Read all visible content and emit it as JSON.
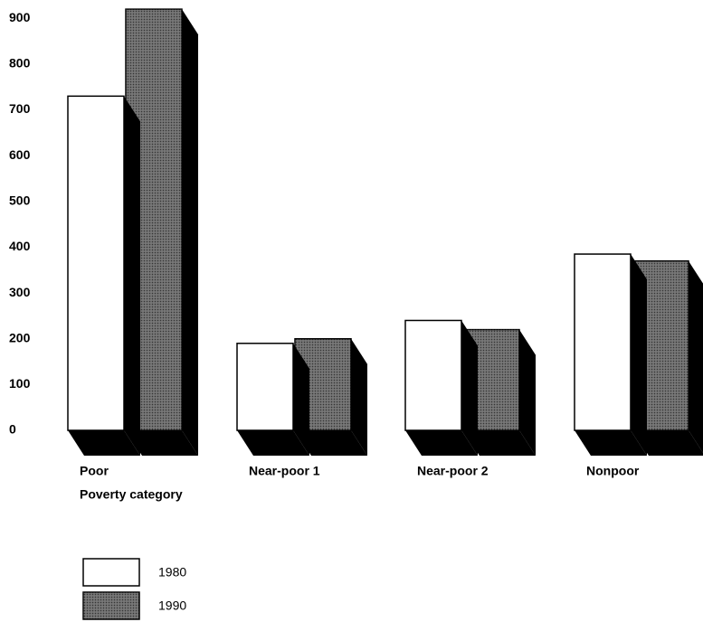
{
  "chart_data": {
    "type": "bar",
    "x_label": "Poverty category",
    "categories": [
      "Poor",
      "Near-poor 1",
      "Near-poor 2",
      "Nonpoor"
    ],
    "series": [
      {
        "name": "1980",
        "color": "#ffffff",
        "values": [
          730,
          190,
          240,
          385
        ]
      },
      {
        "name": "1990",
        "color": "#6a6a6a",
        "values": [
          920,
          200,
          220,
          370
        ]
      }
    ],
    "ylim": [
      0,
      940
    ],
    "yticks": [
      0,
      100,
      200,
      300,
      400,
      500,
      600,
      700,
      800,
      900
    ],
    "grid": false
  }
}
